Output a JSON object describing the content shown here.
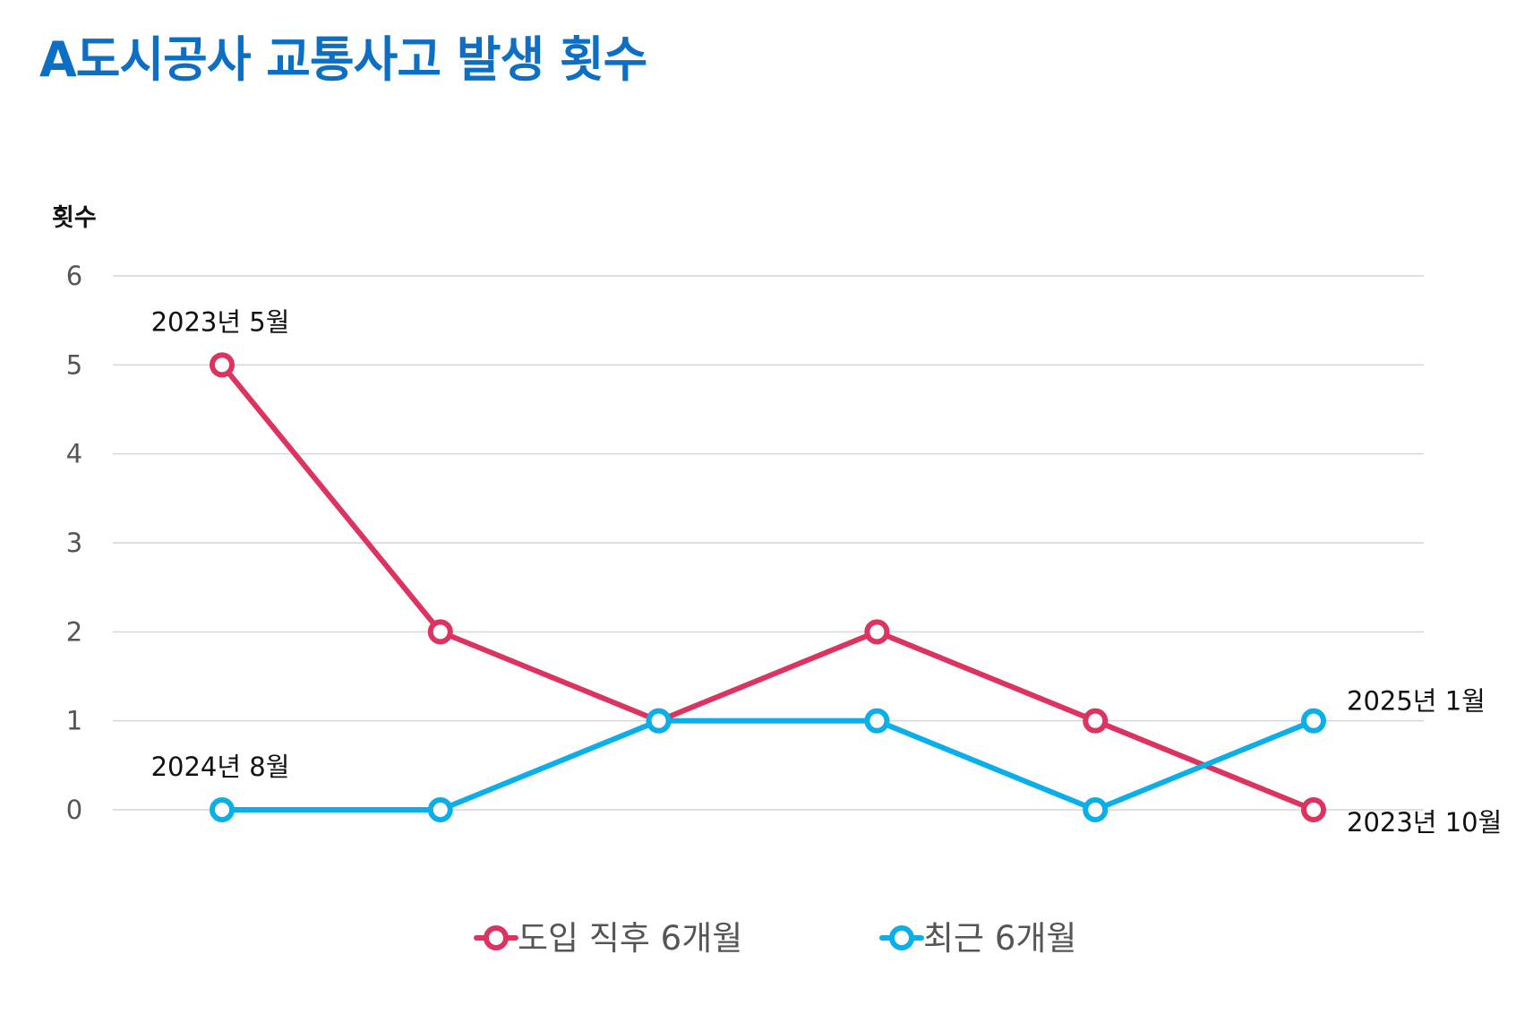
{
  "chart_data": {
    "type": "line",
    "title": "A도시공사 교통사고 발생 횟수",
    "ylabel": "횟수",
    "xlabel": "",
    "ylim": [
      0,
      6
    ],
    "yticks": [
      0,
      1,
      2,
      3,
      4,
      5,
      6
    ],
    "grid": true,
    "legend_position": "bottom",
    "x": [
      1,
      2,
      3,
      4,
      5,
      6
    ],
    "series": [
      {
        "name": "도입 직후 6개월",
        "color": "#dd3360",
        "values": [
          5,
          2,
          1,
          2,
          1,
          0
        ],
        "start_label": "2023년 5월",
        "end_label": "2023년 10월"
      },
      {
        "name": "최근 6개월",
        "color": "#0aaee8",
        "values": [
          0,
          0,
          1,
          1,
          0,
          1
        ],
        "start_label": "2024년 8월",
        "end_label": "2025년 1월"
      }
    ]
  }
}
